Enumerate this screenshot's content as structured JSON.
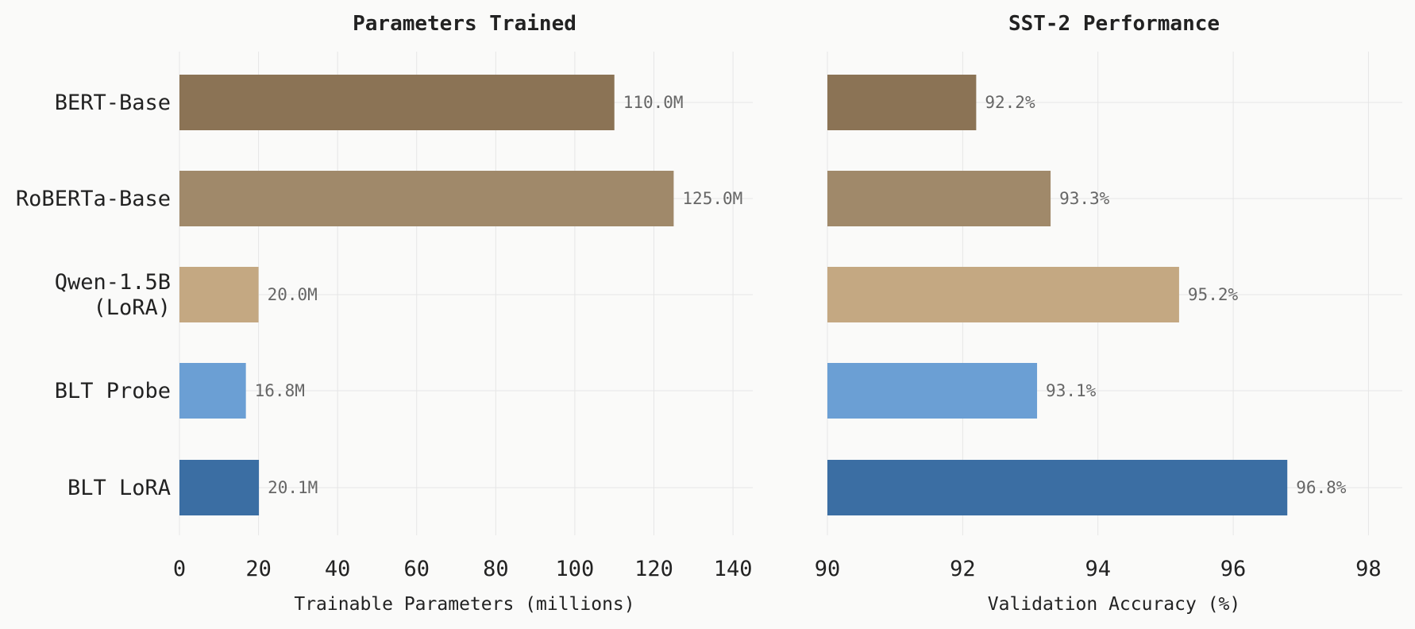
{
  "chart_data": [
    {
      "type": "bar",
      "orientation": "horizontal",
      "title": "Parameters Trained",
      "xlabel": "Trainable Parameters (millions)",
      "ylabel": "",
      "categories": [
        "BERT-Base",
        "RoBERTa-Base",
        "Qwen-1.5B (LoRA)",
        "BLT Probe",
        "BLT LoRA"
      ],
      "category_display": [
        [
          "BERT-Base"
        ],
        [
          "RoBERTa-Base"
        ],
        [
          "Qwen-1.5B",
          "(LoRA)"
        ],
        [
          "BLT Probe"
        ],
        [
          "BLT LoRA"
        ]
      ],
      "values": [
        110.0,
        125.0,
        20.0,
        16.8,
        20.1
      ],
      "value_labels": [
        "110.0M",
        "125.0M",
        "20.0M",
        "16.8M",
        "20.1M"
      ],
      "xlim": [
        0,
        145
      ],
      "xticks": [
        0,
        20,
        40,
        60,
        80,
        100,
        120,
        140
      ],
      "xtick_labels": [
        "0",
        "20",
        "40",
        "60",
        "80",
        "100",
        "120",
        "140"
      ],
      "colors": [
        "#8b7355",
        "#a0896a",
        "#c4a882",
        "#6b9fd4",
        "#3b6ea3"
      ],
      "grid": true,
      "legend": "none"
    },
    {
      "type": "bar",
      "orientation": "horizontal",
      "title": "SST-2 Performance",
      "xlabel": "Validation Accuracy (%)",
      "ylabel": "",
      "categories": [
        "BERT-Base",
        "RoBERTa-Base",
        "Qwen-1.5B (LoRA)",
        "BLT Probe",
        "BLT LoRA"
      ],
      "values": [
        92.2,
        93.3,
        95.2,
        93.1,
        96.8
      ],
      "value_labels": [
        "92.2%",
        "93.3%",
        "95.2%",
        "93.1%",
        "96.8%"
      ],
      "xlim": [
        90,
        98.5
      ],
      "xticks": [
        90,
        92,
        94,
        96,
        98
      ],
      "xtick_labels": [
        "90",
        "92",
        "94",
        "96",
        "98"
      ],
      "colors": [
        "#8b7355",
        "#a0896a",
        "#c4a882",
        "#6b9fd4",
        "#3b6ea3"
      ],
      "grid": true,
      "legend": "none"
    }
  ]
}
